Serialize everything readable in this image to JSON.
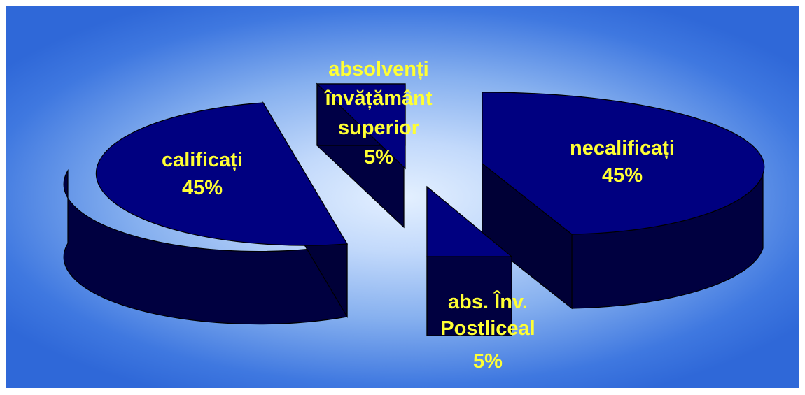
{
  "chart_data": {
    "type": "pie",
    "title": "",
    "slices": [
      {
        "label": "calificați",
        "value": 45,
        "percent_label": "45%",
        "exploded": true
      },
      {
        "label": "absolvenți învățământ superior",
        "value": 5,
        "percent_label": "5%",
        "exploded": true
      },
      {
        "label": "necalificați",
        "value": 45,
        "percent_label": "45%",
        "exploded": true
      },
      {
        "label": "abs. Înv. Postliceal",
        "value": 5,
        "percent_label": "5%",
        "exploded": true
      }
    ],
    "three_d": true,
    "legend": "none"
  },
  "labels": {
    "calificati": {
      "name": "calificați",
      "pct": "45%"
    },
    "superior": {
      "line1": "absolvenți",
      "line2": "învățământ",
      "line3": "superior",
      "pct": "5%"
    },
    "necalificati": {
      "name": "necalificați",
      "pct": "45%"
    },
    "postliceal": {
      "line1": "abs. Înv.",
      "line2": "Postliceal",
      "pct": "5%"
    }
  },
  "colors": {
    "slice_top": "#000080",
    "slice_side": "#000040",
    "outline": "#000000",
    "label_text": "#ffff33",
    "background_center": "#e4f0ff",
    "background_edge": "#2f68d8"
  }
}
